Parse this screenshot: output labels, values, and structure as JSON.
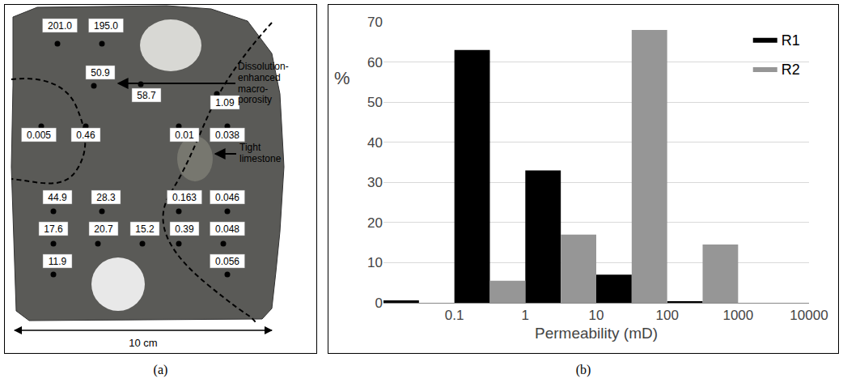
{
  "panel_labels": [
    "(a)",
    "(b)"
  ],
  "photo": {
    "annotations": [
      "Dissolution-enhanced macro-porosity",
      "Tight limestone"
    ],
    "scale_label": "10 cm",
    "measurements": [
      "201.0",
      "195.0",
      "50.9",
      "58.7",
      "1.09",
      "0.005",
      "0.46",
      "0.01",
      "0.038",
      "44.9",
      "28.3",
      "0.163",
      "0.046",
      "17.6",
      "20.7",
      "15.2",
      "0.39",
      "0.048",
      "11.9",
      "0.056"
    ]
  },
  "chart_data": {
    "type": "histogram",
    "bins": [
      0.01,
      0.1,
      1,
      10,
      100,
      1000,
      10000
    ],
    "series": [
      {
        "name": "R1",
        "color": "#000000",
        "values": [
          0.6,
          63,
          33,
          7,
          0.4,
          0
        ]
      },
      {
        "name": "R2",
        "color": "#969696",
        "values": [
          0,
          5.5,
          17,
          68,
          14.5,
          0
        ]
      }
    ],
    "x_label": "Permeability (mD)",
    "y_label": "%",
    "log": "x",
    "xlim": [
      0.01,
      10000
    ],
    "xticks": [
      0.1,
      1,
      10,
      100,
      1000,
      10000
    ],
    "ylim": [
      0,
      70
    ],
    "yticks": [
      0,
      10,
      20,
      30,
      40,
      50,
      60,
      70
    ],
    "grid": true,
    "legend": "top right"
  }
}
